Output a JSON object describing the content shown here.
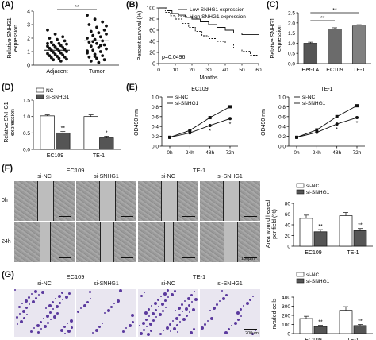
{
  "panel_letters": [
    "(A)",
    "(B)",
    "(C)",
    "(D)",
    "(E)",
    "(F)",
    "(G)"
  ],
  "colors": {
    "dark_gray": "#555555",
    "light_gray": "#ffffff",
    "line_black": "#111111",
    "stain_purple": "#5b3a9e",
    "wound_gray": "#bdbdbd"
  },
  "chart_data": [
    {
      "id": "A",
      "type": "scatter",
      "categories": [
        "Adjacent",
        "Tumor"
      ],
      "ylabel": "Relative SNHG1 expression",
      "yticks": [
        "0",
        "1",
        "2",
        "3",
        "4"
      ],
      "ylim": [
        0,
        4
      ],
      "significance": "**",
      "mean_line": [
        1.1,
        1.8
      ],
      "series": [
        {
          "values": [
            2.6,
            2.3,
            2.1,
            2.0,
            1.9,
            1.8,
            1.7,
            1.6,
            1.55,
            1.5,
            1.45,
            1.4,
            1.35,
            1.3,
            1.25,
            1.2,
            1.15,
            1.1,
            1.05,
            1.0,
            0.95,
            0.9,
            0.85,
            0.8,
            0.75,
            0.7,
            0.65,
            0.6,
            0.55,
            0.5,
            0.45,
            0.4,
            0.3,
            1.6,
            1.3
          ]
        },
        {
          "values": [
            3.7,
            3.4,
            3.2,
            3.0,
            2.8,
            2.6,
            2.5,
            2.4,
            2.3,
            2.2,
            2.1,
            2.0,
            1.9,
            1.8,
            1.7,
            1.6,
            1.5,
            1.4,
            1.3,
            1.2,
            1.1,
            1.0,
            0.9,
            0.8,
            0.7,
            0.6,
            0.5,
            0.4,
            0.3,
            0.2,
            2.9,
            1.75,
            1.45,
            1.05,
            0.65
          ]
        }
      ]
    },
    {
      "id": "B",
      "type": "line",
      "xlabel": "Months",
      "ylabel": "Percent survival (%)",
      "xticks": [
        "0",
        "10",
        "20",
        "30",
        "40",
        "50",
        "60"
      ],
      "yticks": [
        "0",
        "20",
        "40",
        "60",
        "80",
        "100"
      ],
      "xlim": [
        0,
        60
      ],
      "ylim": [
        0,
        100
      ],
      "annotation": "p=0.0496",
      "series": [
        {
          "name": "Low SNHG1 expression",
          "x": [
            0,
            5,
            8,
            12,
            16,
            20,
            25,
            30,
            35,
            40,
            45,
            50,
            60
          ],
          "y": [
            100,
            95,
            90,
            87,
            83,
            80,
            75,
            70,
            65,
            60,
            55,
            52,
            52
          ]
        },
        {
          "name": "High SNHG1 expression",
          "x": [
            0,
            4,
            7,
            10,
            14,
            18,
            22,
            26,
            30,
            35,
            40,
            45,
            50,
            55,
            60
          ],
          "y": [
            100,
            92,
            86,
            80,
            72,
            65,
            58,
            50,
            45,
            40,
            35,
            28,
            22,
            15,
            15
          ]
        }
      ]
    },
    {
      "id": "C",
      "type": "bar",
      "categories": [
        "Het-1A",
        "EC109",
        "TE-1"
      ],
      "values": [
        1.0,
        1.7,
        1.85
      ],
      "errors": [
        0.05,
        0.06,
        0.06
      ],
      "ylabel": "Relative SNHG1 expression",
      "yticks": [
        "0.0",
        "0.5",
        "1.0",
        "1.5",
        "2.0",
        "2.5"
      ],
      "ylim": [
        0,
        2.5
      ],
      "significance": [
        "**",
        "**"
      ]
    },
    {
      "id": "D",
      "type": "bar",
      "categories": [
        "EC109",
        "TE-1"
      ],
      "series": [
        {
          "name": "NC",
          "values": [
            1.02,
            1.0
          ],
          "errors": [
            0.03,
            0.05
          ]
        },
        {
          "name": "si-SNHG1",
          "values": [
            0.5,
            0.35
          ],
          "errors": [
            0.04,
            0.05
          ]
        }
      ],
      "ylabel": "Relative SNHG1 expression",
      "yticks": [
        "0.0",
        "0.5",
        "1.0",
        "1.5"
      ],
      "ylim": [
        0,
        1.5
      ],
      "marks": [
        "**",
        "*"
      ]
    },
    {
      "id": "E1",
      "type": "line",
      "title": "EC109",
      "categories": [
        "0h",
        "24h",
        "48h",
        "72h"
      ],
      "ylabel": "OD490 nm",
      "yticks": [
        "0.0",
        "0.2",
        "0.4",
        "0.6",
        "0.8",
        "1.0"
      ],
      "ylim": [
        0,
        1.0
      ],
      "series": [
        {
          "name": "si-NC",
          "values": [
            0.18,
            0.32,
            0.58,
            0.8
          ]
        },
        {
          "name": "si-SNHG1",
          "values": [
            0.18,
            0.27,
            0.42,
            0.56
          ]
        }
      ],
      "marks": [
        "*",
        "*"
      ]
    },
    {
      "id": "E2",
      "type": "line",
      "title": "TE-1",
      "categories": [
        "0h",
        "24h",
        "48h",
        "72h"
      ],
      "ylabel": "OD490 nm",
      "yticks": [
        "0.0",
        "0.2",
        "0.4",
        "0.6",
        "0.8",
        "1.0"
      ],
      "ylim": [
        0,
        1.0
      ],
      "series": [
        {
          "name": "si-NC",
          "values": [
            0.18,
            0.33,
            0.6,
            0.82
          ]
        },
        {
          "name": "si-SNHG1",
          "values": [
            0.18,
            0.28,
            0.45,
            0.58
          ]
        }
      ],
      "marks": [
        "*",
        "*"
      ]
    },
    {
      "id": "F",
      "type": "bar",
      "categories": [
        "EC109",
        "TE-1"
      ],
      "series": [
        {
          "name": "si-NC",
          "values": [
            52,
            57
          ],
          "errors": [
            6,
            6
          ]
        },
        {
          "name": "si-SNHG1",
          "values": [
            27,
            29
          ],
          "errors": [
            4,
            4
          ]
        }
      ],
      "ylabel": "Area wound healed per field (%)",
      "yticks": [
        "0",
        "20",
        "40",
        "60",
        "80"
      ],
      "ylim": [
        0,
        80
      ],
      "marks": [
        "**",
        "**"
      ]
    },
    {
      "id": "G",
      "type": "bar",
      "categories": [
        "EC109",
        "TE-1"
      ],
      "series": [
        {
          "name": "si-NC",
          "values": [
            165,
            255
          ],
          "errors": [
            25,
            40
          ]
        },
        {
          "name": "si-SNHG1",
          "values": [
            78,
            88
          ],
          "errors": [
            12,
            12
          ]
        }
      ],
      "ylabel": "Invaded cells",
      "yticks": [
        "0",
        "100",
        "200",
        "300",
        "400"
      ],
      "ylim": [
        0,
        400
      ],
      "marks": [
        "**",
        "**"
      ]
    }
  ],
  "micro_F": {
    "cell_lines": [
      "EC109",
      "TE-1"
    ],
    "groups": [
      "si-NC",
      "si-SNHG1",
      "si-NC",
      "si-SNHG1"
    ],
    "times": [
      "0h",
      "24h"
    ],
    "wound_widths": [
      0.5,
      0.5,
      0.5,
      0.5,
      0.3,
      0.42,
      0.25,
      0.4
    ],
    "scalebar": "100μm"
  },
  "micro_G": {
    "cell_lines": [
      "EC109",
      "TE-1"
    ],
    "groups": [
      "si-NC",
      "si-SNHG1",
      "si-NC",
      "si-SNHG1"
    ],
    "densities": [
      0.75,
      0.3,
      0.9,
      0.35
    ],
    "scalebar": "200μm"
  }
}
